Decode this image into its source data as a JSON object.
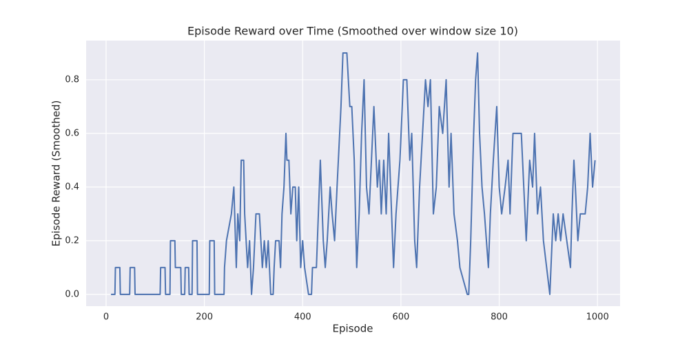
{
  "chart_data": {
    "type": "line",
    "title": "Episode Reward over Time (Smoothed over window size 10)",
    "x_label": "Episode",
    "y_label": "Episode Reward (Smoothed)",
    "xlim": [
      -40.6,
      1046
    ],
    "ylim": [
      -0.044,
      0.946
    ],
    "xticks": [
      0,
      200,
      400,
      600,
      800,
      1000
    ],
    "yticks": [
      {
        "value": 0,
        "label": "0.0"
      },
      0.2,
      0.4,
      0.6,
      0.8
    ],
    "grid": true,
    "background": "#eaeaf2",
    "series": [
      {
        "color": "#4c72b0",
        "x": [
          10,
          18,
          19,
          28,
          29,
          48,
          49,
          58,
          59,
          110,
          111,
          120,
          121,
          130,
          131,
          140,
          141,
          152,
          153,
          160,
          161,
          168,
          169,
          175,
          176,
          185,
          186,
          210,
          211,
          220,
          221,
          240,
          241,
          245,
          255,
          260,
          265,
          268,
          272,
          275,
          280,
          282,
          288,
          292,
          296,
          300,
          305,
          312,
          318,
          322,
          326,
          330,
          335,
          340,
          342,
          345,
          352,
          355,
          358,
          362,
          366,
          368,
          372,
          376,
          380,
          385,
          388,
          392,
          396,
          400,
          404,
          412,
          418,
          420,
          428,
          432,
          436,
          438,
          442,
          446,
          450,
          456,
          460,
          465,
          470,
          478,
          482,
          490,
          493,
          496,
          500,
          505,
          510,
          515,
          520,
          525,
          530,
          535,
          540,
          545,
          552,
          556,
          560,
          565,
          570,
          575,
          585,
          590,
          598,
          605,
          612,
          618,
          622,
          628,
          632,
          638,
          644,
          650,
          655,
          660,
          666,
          672,
          678,
          685,
          692,
          698,
          702,
          708,
          715,
          720,
          735,
          738,
          742,
          748,
          752,
          756,
          760,
          765,
          770,
          778,
          782,
          788,
          795,
          800,
          805,
          812,
          818,
          822,
          828,
          845,
          850,
          855,
          862,
          868,
          872,
          878,
          884,
          890,
          903,
          910,
          915,
          920,
          925,
          930,
          945,
          948,
          952,
          955,
          960,
          965,
          975,
          980,
          985,
          990,
          995
        ],
        "values": [
          0,
          0,
          0.1,
          0.1,
          0,
          0,
          0.1,
          0.1,
          0,
          0,
          0.1,
          0.1,
          0,
          0,
          0.2,
          0.2,
          0.1,
          0.1,
          0,
          0,
          0.1,
          0.1,
          0,
          0,
          0.2,
          0.2,
          0,
          0,
          0.2,
          0.2,
          0,
          0,
          0.1,
          0.2,
          0.3,
          0.4,
          0.1,
          0.3,
          0.2,
          0.5,
          0.5,
          0.3,
          0.1,
          0.2,
          0,
          0.1,
          0.3,
          0.3,
          0.1,
          0.2,
          0.1,
          0.2,
          0,
          0,
          0.1,
          0.2,
          0.2,
          0.1,
          0.3,
          0.4,
          0.6,
          0.5,
          0.5,
          0.3,
          0.4,
          0.4,
          0.2,
          0.4,
          0.1,
          0.2,
          0.1,
          0,
          0,
          0.1,
          0.1,
          0.3,
          0.5,
          0.4,
          0.2,
          0.1,
          0.2,
          0.4,
          0.3,
          0.2,
          0.4,
          0.7,
          0.9,
          0.9,
          0.8,
          0.7,
          0.7,
          0.5,
          0.1,
          0.3,
          0.6,
          0.8,
          0.4,
          0.3,
          0.5,
          0.7,
          0.4,
          0.5,
          0.3,
          0.5,
          0.3,
          0.6,
          0.1,
          0.3,
          0.5,
          0.8,
          0.8,
          0.5,
          0.6,
          0.2,
          0.1,
          0.4,
          0.6,
          0.8,
          0.7,
          0.8,
          0.3,
          0.4,
          0.7,
          0.6,
          0.8,
          0.4,
          0.6,
          0.3,
          0.2,
          0.1,
          0,
          0,
          0.2,
          0.6,
          0.8,
          0.9,
          0.6,
          0.4,
          0.3,
          0.1,
          0.3,
          0.5,
          0.7,
          0.4,
          0.3,
          0.4,
          0.5,
          0.3,
          0.6,
          0.6,
          0.4,
          0.2,
          0.5,
          0.4,
          0.6,
          0.3,
          0.4,
          0.2,
          0,
          0.3,
          0.2,
          0.3,
          0.2,
          0.3,
          0.1,
          0.3,
          0.5,
          0.4,
          0.2,
          0.3,
          0.3,
          0.4,
          0.6,
          0.4,
          0.5
        ]
      }
    ]
  }
}
